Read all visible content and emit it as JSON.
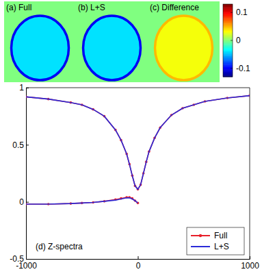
{
  "chart_data": [
    {
      "type": "heatmap",
      "panels": [
        {
          "title": "(a) Full",
          "background": 0,
          "interior": -0.04,
          "rim": -0.1
        },
        {
          "title": "(b) L+S",
          "background": 0,
          "interior": -0.04,
          "rim": -0.1
        },
        {
          "title": "(c) Difference",
          "background": 0,
          "interior": 0.03,
          "rim": 0.05
        }
      ],
      "colorbar_range": [
        -0.13,
        0.13
      ],
      "colorbar_ticks": [
        0.1,
        0,
        -0.1
      ]
    },
    {
      "type": "line",
      "title": "(d) Z-spectra",
      "x": [
        -1000,
        -800,
        -600,
        -500,
        -400,
        -300,
        -200,
        -150,
        -100,
        -75,
        -50,
        -25,
        0,
        25,
        50,
        75,
        100,
        150,
        200,
        300,
        400,
        500,
        600,
        800,
        1000
      ],
      "series": [
        {
          "name": "Full",
          "color": "#e8202a",
          "marker": "point",
          "values": [
            0.92,
            0.9,
            0.87,
            0.85,
            0.81,
            0.75,
            0.63,
            0.54,
            0.42,
            0.33,
            0.23,
            0.14,
            0.11,
            0.15,
            0.25,
            0.35,
            0.44,
            0.56,
            0.65,
            0.76,
            0.82,
            0.85,
            0.88,
            0.91,
            0.93
          ]
        },
        {
          "name": "L+S",
          "color": "#2b2bd8",
          "values": [
            0.92,
            0.9,
            0.87,
            0.85,
            0.81,
            0.75,
            0.63,
            0.54,
            0.42,
            0.33,
            0.23,
            0.14,
            0.11,
            0.15,
            0.25,
            0.35,
            0.44,
            0.56,
            0.65,
            0.76,
            0.82,
            0.85,
            0.88,
            0.91,
            0.93
          ]
        },
        {
          "color": "#e8202a",
          "marker": "point",
          "values": [
            -0.02,
            -0.02,
            -0.015,
            -0.01,
            -0.005,
            0.005,
            0.02,
            0.03,
            0.04,
            0.04,
            0.03,
            0.01,
            -0.01,
            null,
            null,
            null,
            null,
            null,
            null,
            null,
            null,
            null,
            null,
            null,
            null
          ]
        },
        {
          "color": "#2b2bd8",
          "values": [
            -0.02,
            -0.02,
            -0.015,
            -0.01,
            -0.005,
            0.005,
            0.015,
            0.025,
            0.035,
            0.035,
            0.025,
            0.01,
            -0.01,
            null,
            null,
            null,
            null,
            null,
            null,
            null,
            null,
            null,
            null,
            null,
            null
          ]
        }
      ],
      "xlim": [
        -1000,
        1000
      ],
      "ylim": [
        -0.5,
        1
      ],
      "xticks": [
        -1000,
        0,
        1000
      ],
      "yticks": [
        -0.5,
        0,
        0.5,
        1
      ],
      "grid": false,
      "legend": "lower right"
    }
  ]
}
